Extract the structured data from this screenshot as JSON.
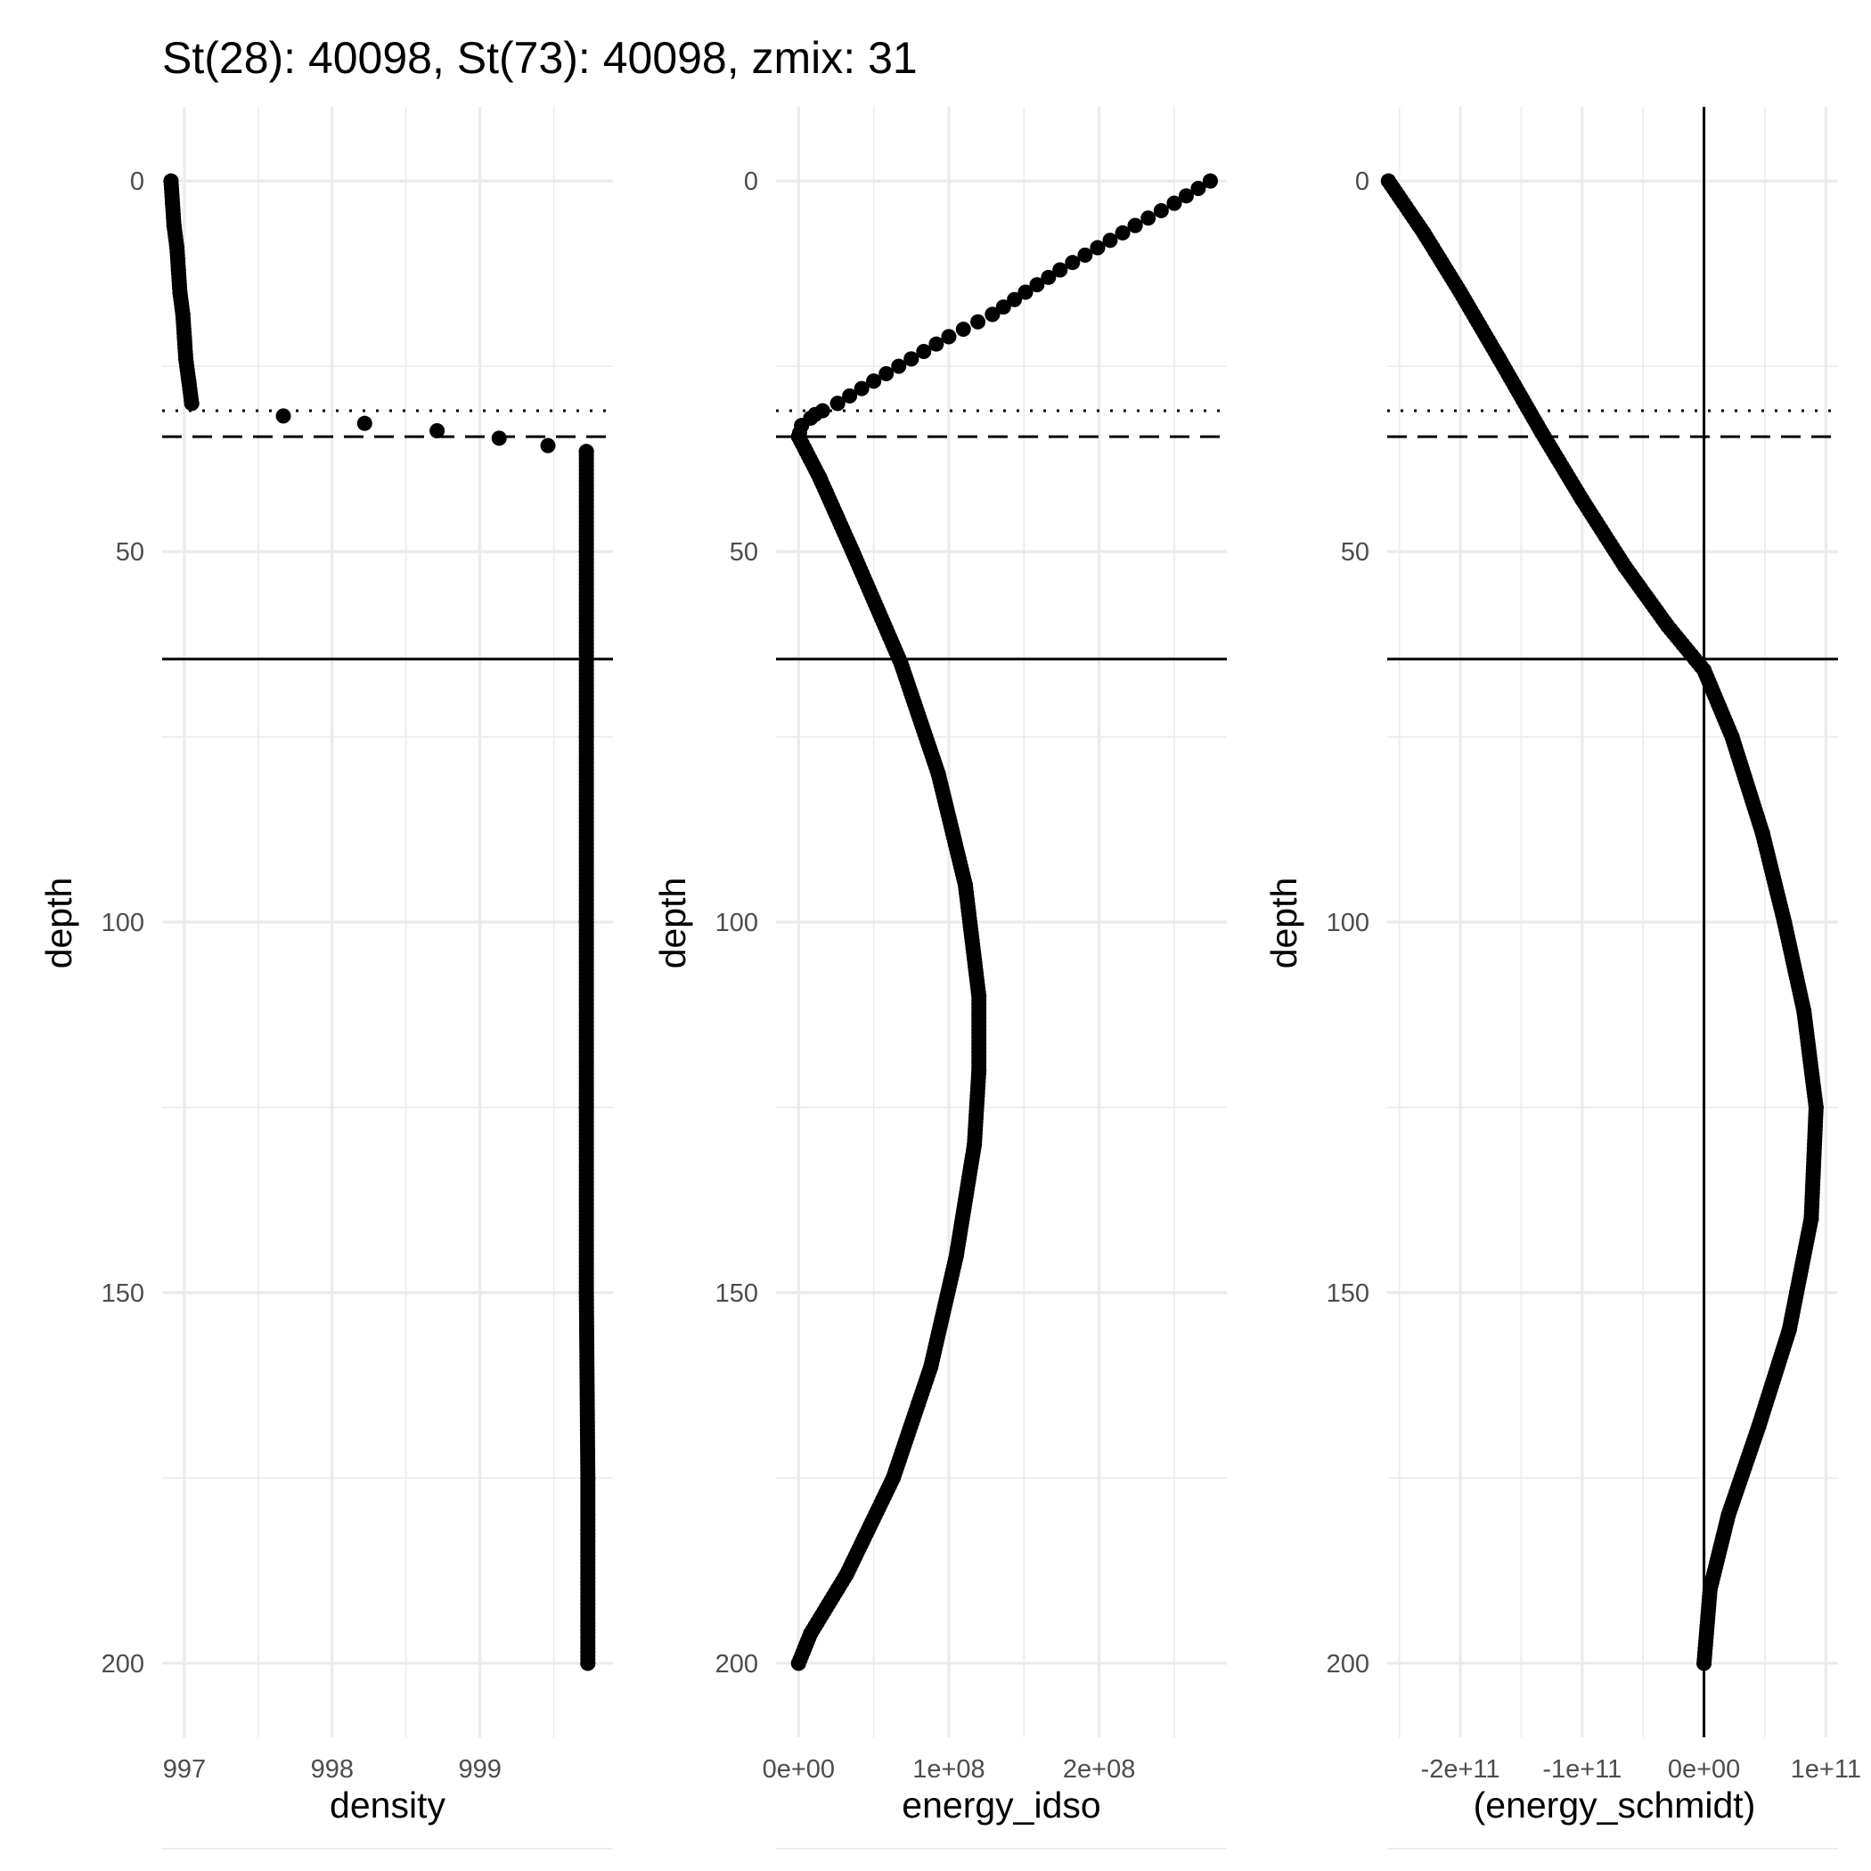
{
  "title": "St(28): 40098, St(73): 40098, zmix: 31",
  "chart_data": [
    {
      "type": "scatter",
      "xlabel": "density",
      "ylabel": "depth",
      "xlim": [
        996.85,
        999.9
      ],
      "ylim": [
        210,
        -10
      ],
      "y_reversed": true,
      "x_ticks": [
        {
          "value": 997,
          "label": "997"
        },
        {
          "value": 998,
          "label": "998"
        },
        {
          "value": 999,
          "label": "999"
        }
      ],
      "y_ticks": [
        {
          "value": 0,
          "label": "0"
        },
        {
          "value": 50,
          "label": "50"
        },
        {
          "value": 100,
          "label": "100"
        },
        {
          "value": 150,
          "label": "150"
        },
        {
          "value": 200,
          "label": "200"
        }
      ],
      "hlines": [
        {
          "y": 31,
          "style": "dotted"
        },
        {
          "y": 34.5,
          "style": "dashed"
        },
        {
          "y": 64.5,
          "style": "solid"
        }
      ],
      "vlines": [],
      "points": [
        [
          996.91,
          0
        ],
        [
          996.92,
          3
        ],
        [
          996.93,
          6
        ],
        [
          996.95,
          9
        ],
        [
          996.96,
          12
        ],
        [
          996.97,
          15
        ],
        [
          996.99,
          18
        ],
        [
          997.0,
          21
        ],
        [
          997.01,
          24
        ],
        [
          997.03,
          27
        ],
        [
          997.05,
          30
        ],
        [
          997.67,
          31.7
        ],
        [
          998.22,
          32.7
        ],
        [
          998.71,
          33.7
        ],
        [
          999.13,
          34.7
        ],
        [
          999.46,
          35.7
        ],
        [
          999.72,
          36.5
        ],
        [
          999.72,
          50
        ],
        [
          999.72,
          75
        ],
        [
          999.72,
          100
        ],
        [
          999.72,
          125
        ],
        [
          999.72,
          150
        ],
        [
          999.73,
          175
        ],
        [
          999.73,
          200
        ]
      ]
    },
    {
      "type": "scatter",
      "xlabel": "energy_idso",
      "ylabel": "depth",
      "xlim": [
        -15000000.0,
        285000000.0
      ],
      "ylim": [
        210,
        -10
      ],
      "y_reversed": true,
      "x_ticks": [
        {
          "value": 0,
          "label": "0e+00"
        },
        {
          "value": 100000000,
          "label": "1e+08"
        },
        {
          "value": 200000000,
          "label": "2e+08"
        }
      ],
      "y_ticks": [
        {
          "value": 0,
          "label": "0"
        },
        {
          "value": 50,
          "label": "50"
        },
        {
          "value": 100,
          "label": "100"
        },
        {
          "value": 150,
          "label": "150"
        },
        {
          "value": 200,
          "label": "200"
        }
      ],
      "hlines": [
        {
          "y": 31,
          "style": "dotted"
        },
        {
          "y": 34.5,
          "style": "dashed"
        },
        {
          "y": 64.5,
          "style": "solid"
        }
      ],
      "vlines": [],
      "points": [
        [
          274000000,
          0
        ],
        [
          250000000,
          3
        ],
        [
          224000000,
          6
        ],
        [
          199000000,
          9
        ],
        [
          174000000,
          12
        ],
        [
          151000000,
          15
        ],
        [
          129000000,
          18
        ],
        [
          100000000,
          21
        ],
        [
          75000000,
          24
        ],
        [
          50000000,
          27
        ],
        [
          26000000,
          30
        ],
        [
          11000000,
          31.5
        ],
        [
          2000000,
          33
        ],
        [
          0,
          34.5
        ],
        [
          14000000,
          40
        ],
        [
          36000000,
          50
        ],
        [
          68000000,
          65
        ],
        [
          93000000,
          80
        ],
        [
          111000000,
          95
        ],
        [
          120000000,
          110
        ],
        [
          120000000,
          120
        ],
        [
          117000000,
          130
        ],
        [
          105000000,
          145
        ],
        [
          88000000,
          160
        ],
        [
          63000000,
          175
        ],
        [
          32000000,
          188
        ],
        [
          8000000,
          196
        ],
        [
          0,
          200
        ]
      ]
    },
    {
      "type": "scatter",
      "xlabel": "(energy_schmidt)",
      "ylabel": "depth",
      "xlim": [
        -260000000000.0,
        110000000000.0
      ],
      "ylim": [
        210,
        -10
      ],
      "y_reversed": true,
      "x_ticks": [
        {
          "value": -200000000000,
          "label": "-2e+11"
        },
        {
          "value": -100000000000,
          "label": "-1e+11"
        },
        {
          "value": 0,
          "label": "0e+00"
        },
        {
          "value": 100000000000,
          "label": "1e+11"
        }
      ],
      "y_ticks": [
        {
          "value": 0,
          "label": "0"
        },
        {
          "value": 50,
          "label": "50"
        },
        {
          "value": 100,
          "label": "100"
        },
        {
          "value": 150,
          "label": "150"
        },
        {
          "value": 200,
          "label": "200"
        }
      ],
      "hlines": [
        {
          "y": 31,
          "style": "dotted"
        },
        {
          "y": 34.5,
          "style": "dashed"
        },
        {
          "y": 64.5,
          "style": "solid"
        }
      ],
      "vlines": [
        {
          "x": 0,
          "style": "solid"
        }
      ],
      "points": [
        [
          -259000000000,
          0
        ],
        [
          -230000000000,
          7
        ],
        [
          -200000000000,
          15
        ],
        [
          -168000000000,
          24
        ],
        [
          -133000000000,
          34
        ],
        [
          -100000000000,
          43
        ],
        [
          -65000000000,
          52
        ],
        [
          -30000000000,
          60
        ],
        [
          0,
          66
        ],
        [
          23000000000,
          75
        ],
        [
          48000000000,
          88
        ],
        [
          66000000000,
          100
        ],
        [
          82000000000,
          112
        ],
        [
          92000000000,
          125
        ],
        [
          88000000000,
          140
        ],
        [
          70000000000,
          155
        ],
        [
          45000000000,
          168
        ],
        [
          20000000000,
          180
        ],
        [
          5000000000,
          190
        ],
        [
          0,
          200
        ]
      ]
    }
  ]
}
